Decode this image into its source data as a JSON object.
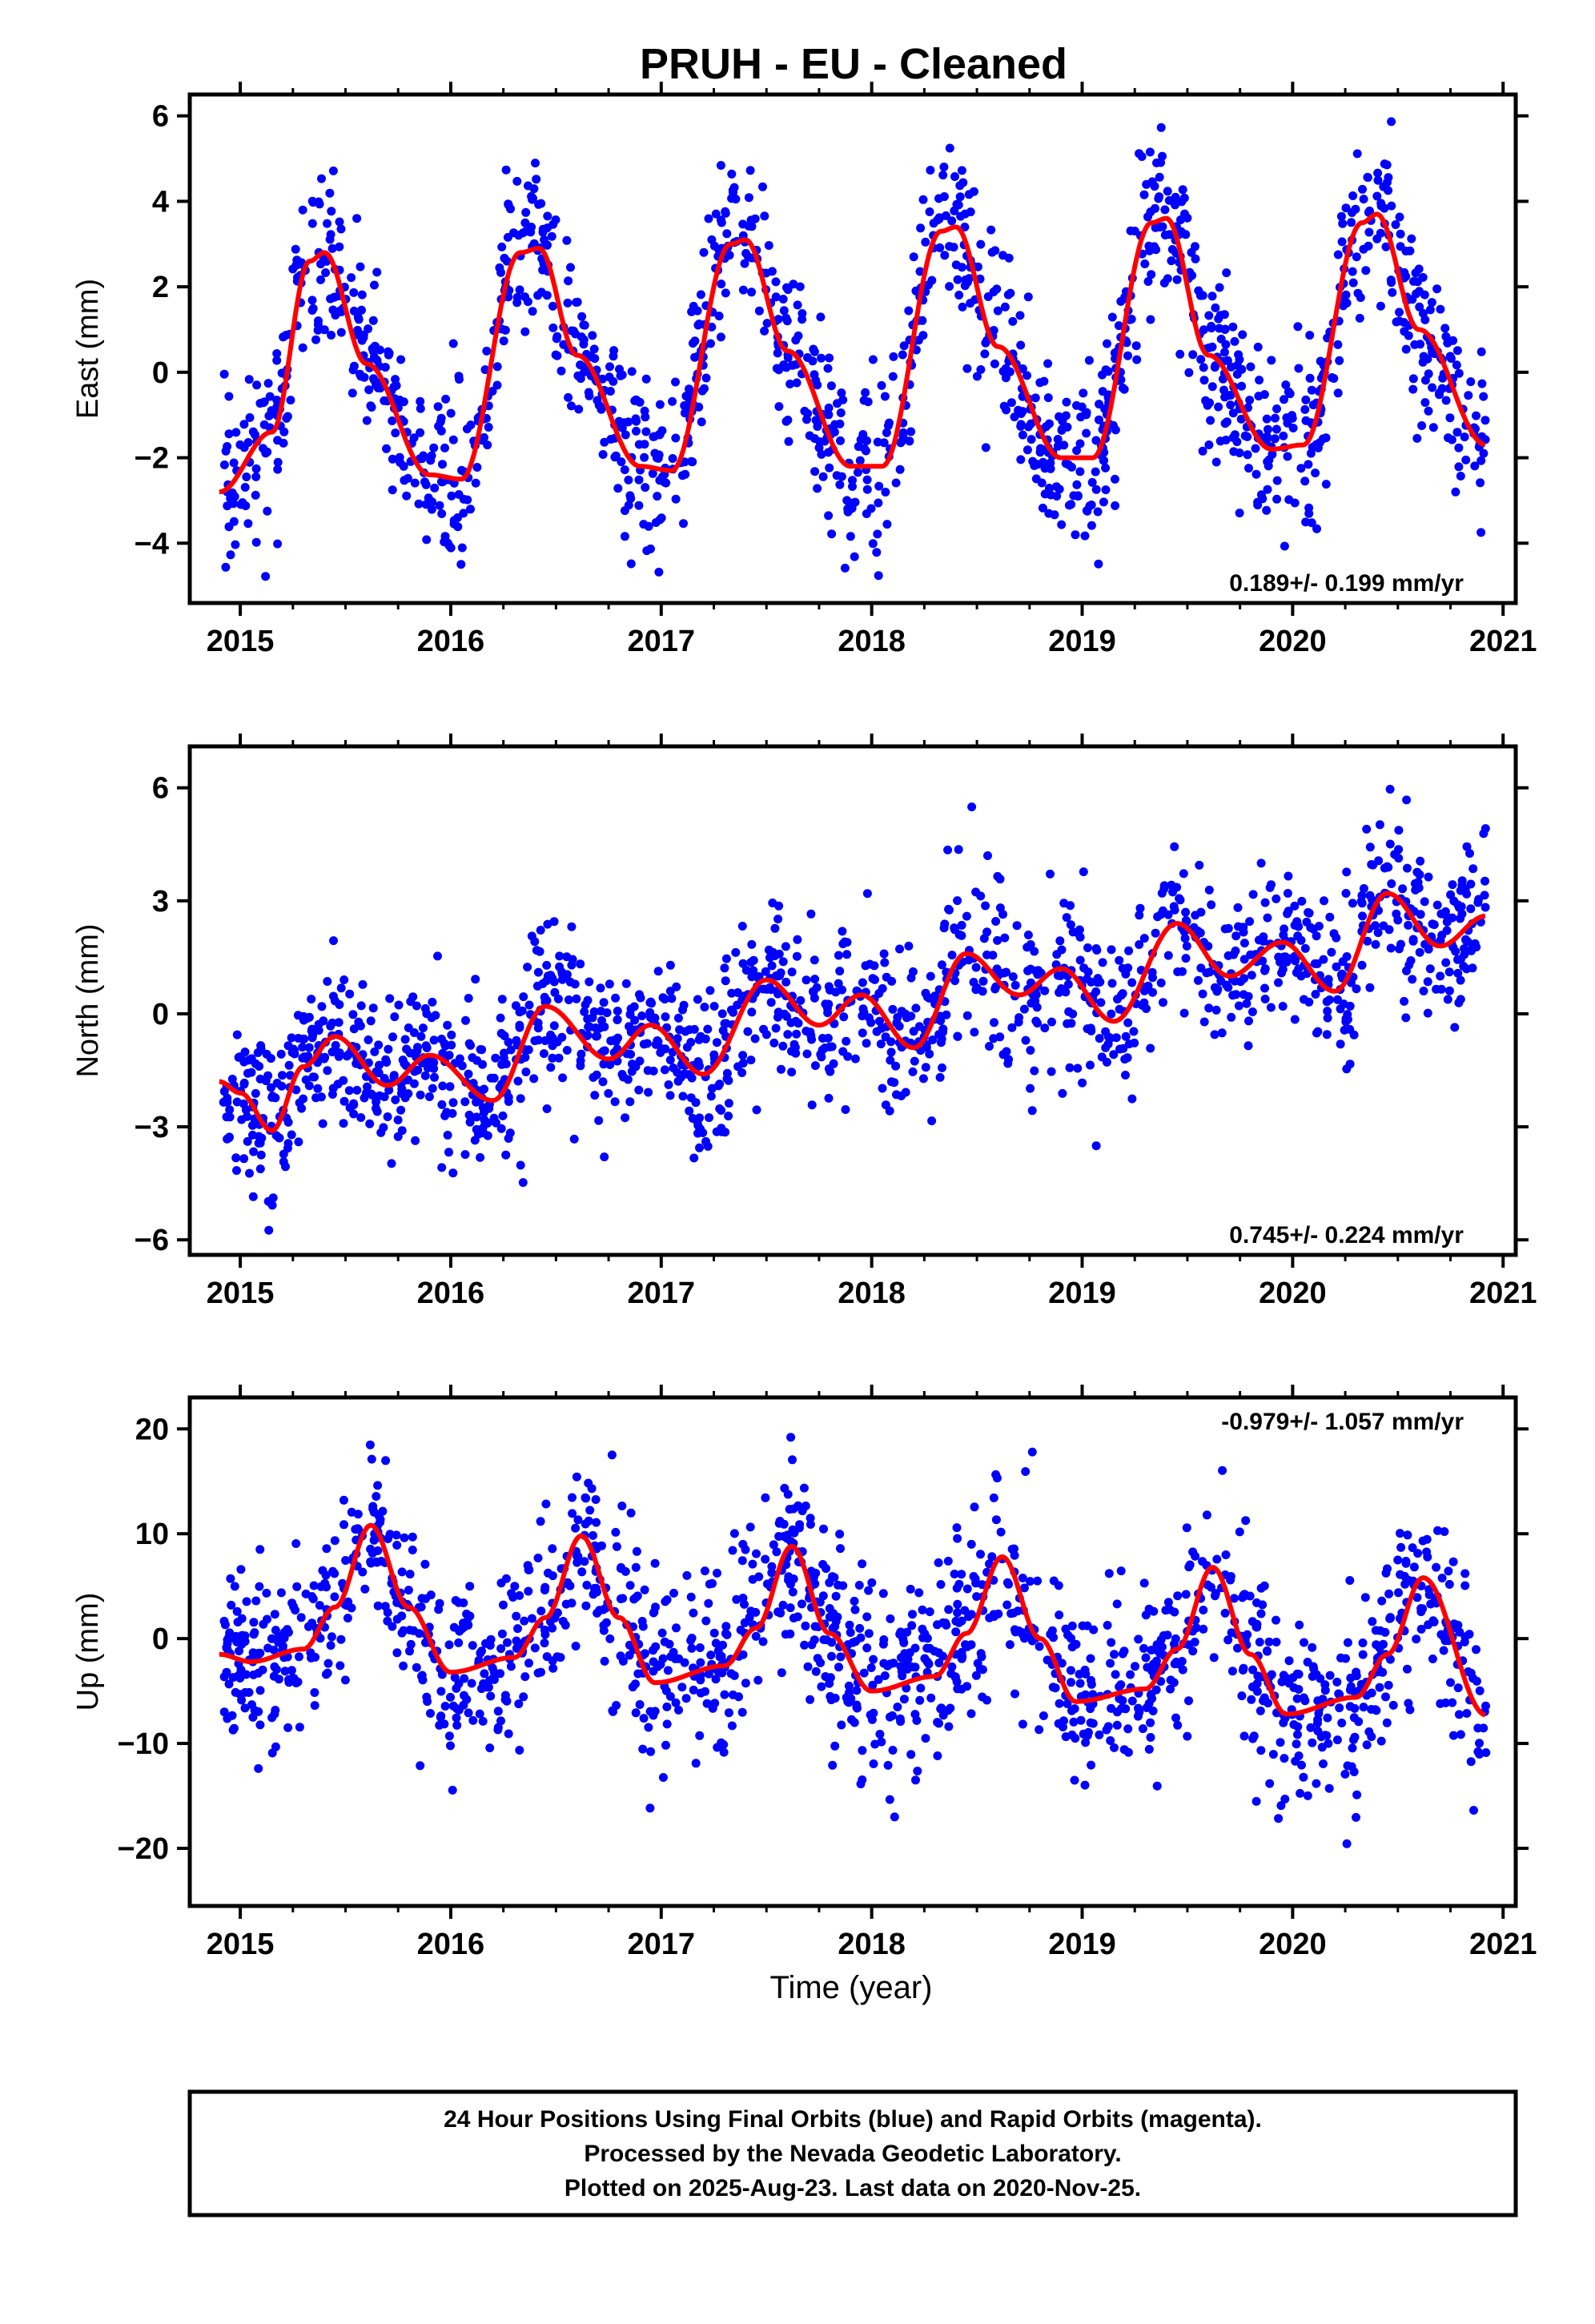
{
  "title": "PRUH  - EU - Cleaned",
  "xlabel": "Time (year)",
  "footer": {
    "line1": "24 Hour Positions Using Final Orbits (blue) and Rapid Orbits (magenta).",
    "line2": "Processed by the Nevada Geodetic Laboratory.",
    "line3": "Plotted on 2025-Aug-23. Last data on 2020-Nov-25."
  },
  "colors": {
    "points": "#0000ff",
    "model": "#ff0000",
    "frame": "#000000"
  },
  "chart_data": [
    {
      "type": "scatter",
      "ylabel": "East (mm)",
      "rate_label": "0.189+/- 0.199 mm/yr",
      "xlim": [
        2014.76,
        2021.06
      ],
      "ylim": [
        -5.4,
        6.5
      ],
      "xticks": [
        2015,
        2016,
        2017,
        2018,
        2019,
        2020,
        2021
      ],
      "xtick_labels": [
        "2015",
        "2016",
        "2017",
        "2018",
        "2019",
        "2020",
        "2021"
      ],
      "yticks": [
        -4,
        -2,
        0,
        2,
        4,
        6
      ],
      "ytick_labels": [
        "−4",
        "−2",
        "0",
        "2",
        "4",
        "6"
      ],
      "model": {
        "x": [
          2014.9,
          2015.15,
          2015.33,
          2015.4,
          2015.6,
          2015.9,
          2016.05,
          2016.33,
          2016.42,
          2016.6,
          2016.9,
          2017.05,
          2017.33,
          2017.4,
          2017.6,
          2017.9,
          2018.05,
          2018.33,
          2018.4,
          2018.6,
          2018.9,
          2019.05,
          2019.33,
          2019.4,
          2019.6,
          2019.9,
          2020.05,
          2020.33,
          2020.4,
          2020.6,
          2020.92
        ],
        "y": [
          -2.8,
          -1.4,
          2.6,
          2.8,
          0.2,
          -2.4,
          -2.5,
          2.8,
          2.9,
          0.4,
          -2.2,
          -2.3,
          3.0,
          3.1,
          0.5,
          -2.2,
          -2.2,
          3.3,
          3.4,
          0.6,
          -2.0,
          -2.0,
          3.5,
          3.6,
          0.4,
          -1.8,
          -1.7,
          3.5,
          3.7,
          1.0,
          -1.7
        ]
      },
      "scatter_hint": {
        "start": 2014.92,
        "end": 2020.92,
        "spread": 1.0
      }
    },
    {
      "type": "scatter",
      "ylabel": "North (mm)",
      "rate_label": "0.745+/- 0.224 mm/yr",
      "xlim": [
        2014.76,
        2021.06
      ],
      "ylim": [
        -6.4,
        7.1
      ],
      "xticks": [
        2015,
        2016,
        2017,
        2018,
        2019,
        2020,
        2021
      ],
      "xtick_labels": [
        "2015",
        "2016",
        "2017",
        "2018",
        "2019",
        "2020",
        "2021"
      ],
      "yticks": [
        -6,
        -3,
        0,
        3,
        6
      ],
      "ytick_labels": [
        "−6",
        "−3",
        "0",
        "3",
        "6"
      ],
      "model": {
        "x": [
          2014.9,
          2015.0,
          2015.15,
          2015.3,
          2015.45,
          2015.7,
          2015.9,
          2016.2,
          2016.45,
          2016.75,
          2016.95,
          2017.2,
          2017.5,
          2017.75,
          2017.95,
          2018.2,
          2018.45,
          2018.7,
          2018.9,
          2019.15,
          2019.45,
          2019.7,
          2019.95,
          2020.2,
          2020.45,
          2020.7,
          2020.92
        ],
        "y": [
          -1.8,
          -2.1,
          -3.1,
          -1.4,
          -0.6,
          -1.9,
          -1.1,
          -2.3,
          0.2,
          -1.2,
          -0.3,
          -1.6,
          0.9,
          -0.3,
          0.5,
          -0.9,
          1.6,
          0.5,
          1.2,
          -0.2,
          2.4,
          1.0,
          1.9,
          0.6,
          3.2,
          1.8,
          2.6
        ]
      },
      "scatter_hint": {
        "start": 2014.92,
        "end": 2020.92,
        "spread": 1.1
      }
    },
    {
      "type": "scatter",
      "ylabel": "Up (mm)",
      "rate_label": "-0.979+/- 1.057 mm/yr",
      "xlim": [
        2014.76,
        2021.06
      ],
      "ylim": [
        -25.5,
        23.0
      ],
      "xticks": [
        2015,
        2016,
        2017,
        2018,
        2019,
        2020,
        2021
      ],
      "xtick_labels": [
        "2015",
        "2016",
        "2017",
        "2018",
        "2019",
        "2020",
        "2021"
      ],
      "yticks": [
        -20,
        -10,
        0,
        10,
        20
      ],
      "ytick_labels": [
        "−20",
        "−10",
        "0",
        "10",
        "20"
      ],
      "model": {
        "x": [
          2014.9,
          2015.05,
          2015.3,
          2015.45,
          2015.62,
          2015.8,
          2016.0,
          2016.3,
          2016.45,
          2016.62,
          2016.8,
          2016.97,
          2017.3,
          2017.45,
          2017.62,
          2017.8,
          2018.0,
          2018.3,
          2018.45,
          2018.62,
          2018.8,
          2018.97,
          2019.3,
          2019.45,
          2019.62,
          2019.8,
          2019.97,
          2020.3,
          2020.45,
          2020.62,
          2020.92
        ],
        "y": [
          -1.5,
          -2.2,
          -1.0,
          3.0,
          10.8,
          3.0,
          -3.2,
          -1.8,
          2.0,
          9.8,
          2.0,
          -4.2,
          -2.6,
          1.0,
          8.8,
          0.5,
          -5.0,
          -3.6,
          0.5,
          7.8,
          0.0,
          -6.0,
          -4.8,
          -1.0,
          6.8,
          -1.5,
          -7.2,
          -5.6,
          -1.5,
          5.8,
          -7.3
        ]
      },
      "scatter_hint": {
        "start": 2014.92,
        "end": 2020.92,
        "spread": 4.5
      }
    }
  ]
}
